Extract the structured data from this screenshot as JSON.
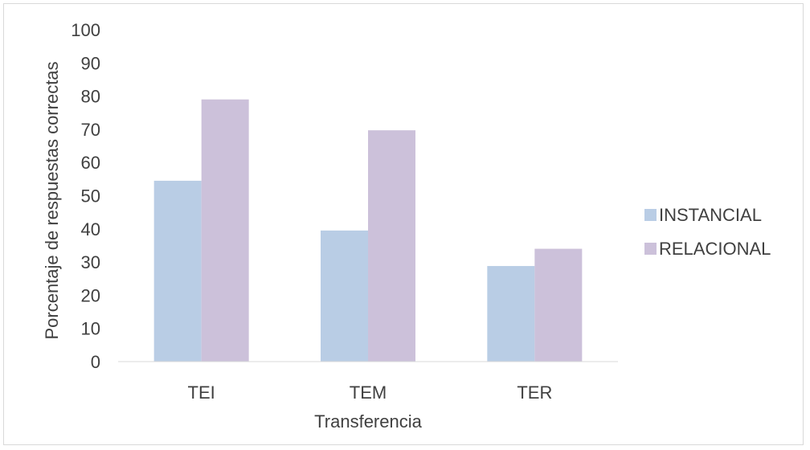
{
  "chart_data": {
    "type": "bar",
    "title": "",
    "xlabel": "Transferencia",
    "ylabel": "Porcentaje de respuestas correctas",
    "categories": [
      "TEI",
      "TEM",
      "TER"
    ],
    "series": [
      {
        "name": "INSTANCIAL",
        "values": [
          54.5,
          39.5,
          28.8
        ],
        "color": "#b9cde5"
      },
      {
        "name": "RELACIONAL",
        "values": [
          79,
          69.7,
          34
        ],
        "color": "#ccc1da"
      }
    ],
    "ylim": [
      0,
      100
    ],
    "yticks": [
      0,
      10,
      20,
      30,
      40,
      50,
      60,
      70,
      80,
      90,
      100
    ],
    "grid": false,
    "legend_position": "right",
    "colors": {
      "axis": "#d9d9d9",
      "text": "#404040",
      "border": "#d9d9d9"
    }
  }
}
